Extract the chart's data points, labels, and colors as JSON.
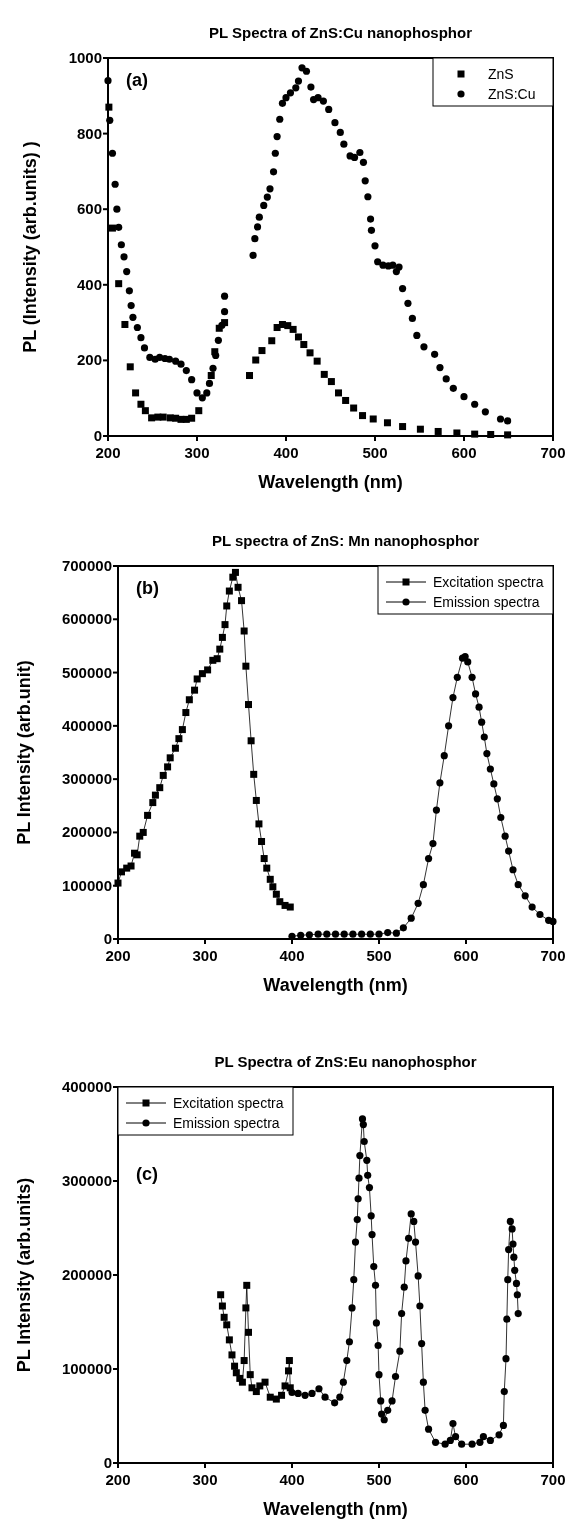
{
  "chart_data": [
    {
      "type": "scatter",
      "title": "PL Spectra of ZnS:Cu nanophosphor",
      "xlabel": "Wavelength (nm)",
      "ylabel": "PL (Intensity (arb.units) )",
      "annotations": [
        "(a)"
      ],
      "xlim": [
        200,
        700
      ],
      "ylim": [
        0,
        1000
      ],
      "xticks": [
        200,
        300,
        400,
        500,
        600,
        700
      ],
      "yticks": [
        0,
        200,
        400,
        600,
        800,
        1000
      ],
      "legend": "top right",
      "grid": false,
      "series": [
        {
          "name": "ZnS",
          "color": "#000000",
          "marker": "square",
          "x": [
            201,
            205,
            212,
            219,
            225,
            231,
            237,
            242,
            249,
            256,
            262,
            270,
            276,
            282,
            288,
            294,
            302,
            310,
            316,
            320,
            325,
            331,
            359,
            366,
            373,
            384,
            390,
            396,
            402,
            408,
            414,
            420,
            427,
            435,
            443,
            451,
            459,
            467,
            476,
            486,
            498,
            514,
            531,
            551,
            571,
            592,
            612,
            630,
            649
          ],
          "values": [
            870,
            550,
            403,
            295,
            183,
            114,
            84,
            67,
            48,
            50,
            50,
            48,
            47,
            44,
            44,
            47,
            67,
            null,
            160,
            223,
            285,
            300,
            160,
            201,
            226,
            252,
            287,
            295,
            292,
            282,
            262,
            242,
            220,
            198,
            163,
            144,
            114,
            94,
            74,
            54,
            45,
            35,
            25,
            18,
            12,
            8,
            5,
            4,
            3
          ]
        },
        {
          "name": "ZnS:Cu",
          "color": "#000000",
          "marker": "circle",
          "x": [
            200,
            202,
            205,
            208,
            210,
            212,
            215,
            218,
            221,
            224,
            226,
            228,
            233,
            237,
            241,
            247,
            253,
            258,
            264,
            269,
            276,
            282,
            288,
            294,
            300,
            306,
            311,
            314,
            318,
            321,
            324,
            328,
            331,
            331,
            363,
            365,
            368,
            370,
            375,
            379,
            382,
            386,
            388,
            390,
            393,
            396,
            400,
            405,
            411,
            414,
            418,
            423,
            428,
            431,
            436,
            442,
            448,
            455,
            461,
            465,
            472,
            477,
            483,
            487,
            489,
            492,
            495,
            496,
            500,
            503,
            509,
            515,
            520,
            524,
            527,
            531,
            537,
            542,
            547,
            555,
            567,
            573,
            580,
            588,
            600,
            612,
            624,
            641,
            649
          ],
          "values": [
            940,
            835,
            748,
            666,
            600,
            552,
            506,
            474,
            435,
            384,
            345,
            314,
            287,
            260,
            233,
            208,
            203,
            208,
            205,
            203,
            198,
            190,
            173,
            149,
            114,
            101,
            114,
            139,
            179,
            213,
            253,
            293,
            329,
            370,
            478,
            522,
            553,
            579,
            610,
            632,
            654,
            699,
            748,
            792,
            838,
            880,
            895,
            908,
            921,
            939,
            974,
            965,
            923,
            890,
            895,
            886,
            864,
            829,
            803,
            772,
            741,
            737,
            750,
            724,
            675,
            633,
            574,
            544,
            503,
            461,
            452,
            450,
            452,
            435,
            447,
            390,
            351,
            311,
            266,
            236,
            216,
            181,
            151,
            126,
            104,
            84,
            64,
            45,
            40
          ]
        }
      ]
    },
    {
      "type": "line",
      "title": "PL spectra of ZnS: Mn nanophosphor",
      "xlabel": "Wavelength (nm)",
      "ylabel": "PL Intensity (arb.unit)",
      "annotations": [
        "(b)"
      ],
      "xlim": [
        200,
        700
      ],
      "ylim": [
        0,
        700000
      ],
      "xticks": [
        200,
        300,
        400,
        500,
        600,
        700
      ],
      "yticks": [
        0,
        100000,
        200000,
        300000,
        400000,
        500000,
        600000,
        700000
      ],
      "legend": "top right",
      "grid": false,
      "line_style": "solid",
      "series": [
        {
          "name": "Excitation spectra",
          "color": "#000000",
          "marker": "square",
          "x": [
            200,
            204,
            210,
            215,
            219,
            222,
            225,
            229,
            234,
            240,
            243,
            248,
            252,
            257,
            260,
            266,
            270,
            274,
            278,
            282,
            288,
            291,
            297,
            303,
            309,
            314,
            317,
            320,
            323,
            325,
            328,
            332,
            335,
            338,
            342,
            345,
            347,
            350,
            353,
            356,
            359,
            362,
            365,
            368,
            371,
            375,
            378,
            382,
            386,
            392,
            398
          ],
          "values": [
            105000,
            126000,
            133000,
            137000,
            161000,
            158000,
            193000,
            200000,
            232000,
            256000,
            270000,
            284000,
            307000,
            323000,
            340000,
            358000,
            376000,
            393000,
            425000,
            449000,
            467000,
            488000,
            498000,
            505000,
            523000,
            526000,
            544000,
            566000,
            590000,
            625000,
            653000,
            679000,
            688000,
            660000,
            635000,
            578000,
            512000,
            440000,
            372000,
            309000,
            260000,
            216000,
            183000,
            151000,
            133000,
            112000,
            98000,
            84000,
            70000,
            63000,
            60000
          ]
        },
        {
          "name": "Emission spectra",
          "color": "#000000",
          "marker": "circle",
          "x": [
            400,
            410,
            420,
            430,
            440,
            450,
            460,
            470,
            480,
            490,
            500,
            510,
            520,
            528,
            537,
            545,
            551,
            557,
            562,
            566,
            570,
            575,
            580,
            585,
            590,
            596,
            599,
            602,
            607,
            611,
            615,
            618,
            621,
            624,
            628,
            632,
            636,
            640,
            645,
            649,
            654,
            660,
            668,
            676,
            685,
            695,
            700
          ],
          "values": [
            5000,
            7000,
            8000,
            9000,
            9000,
            9000,
            9000,
            9000,
            9000,
            9000,
            9000,
            12000,
            11000,
            21000,
            39000,
            67000,
            102000,
            151000,
            179000,
            242000,
            293000,
            344000,
            400000,
            453000,
            491000,
            527000,
            530000,
            520000,
            491000,
            460000,
            435000,
            407000,
            379000,
            348000,
            319000,
            291000,
            263000,
            228000,
            193000,
            165000,
            130000,
            102000,
            81000,
            60000,
            46000,
            35000,
            33000
          ]
        }
      ]
    },
    {
      "type": "line",
      "title": "PL Spectra of ZnS:Eu nanophosphor",
      "xlabel": "Wavelength (nm)",
      "ylabel": "PL Intensity (arb.units)",
      "annotations": [
        "(c)"
      ],
      "xlim": [
        200,
        700
      ],
      "ylim": [
        0,
        400000
      ],
      "xticks": [
        200,
        300,
        400,
        500,
        600,
        700
      ],
      "yticks": [
        0,
        100000,
        200000,
        300000,
        400000
      ],
      "legend": "top left",
      "grid": false,
      "line_style": "solid",
      "series": [
        {
          "name": "Excitation spectra",
          "color": "#000000",
          "marker": "square",
          "x": [
            318,
            320,
            322,
            325,
            328,
            331,
            334,
            336,
            340,
            343,
            345,
            347,
            348,
            350,
            352,
            354,
            359,
            363,
            369,
            375,
            382,
            388,
            392,
            396,
            397,
            398
          ],
          "values": [
            179000,
            167000,
            155000,
            147000,
            131000,
            115000,
            103000,
            96000,
            90000,
            86000,
            109000,
            165000,
            189000,
            139000,
            94000,
            80000,
            76000,
            82000,
            86000,
            70000,
            68000,
            72000,
            82000,
            98000,
            109000,
            80000
          ]
        },
        {
          "name": "Emission spectra",
          "color": "#000000",
          "marker": "circle",
          "x": [
            400,
            407,
            415,
            423,
            431,
            438,
            449,
            455,
            459,
            463,
            466,
            469,
            471,
            473,
            475,
            476,
            477,
            478,
            481,
            482,
            483,
            486,
            487,
            489,
            491,
            492,
            494,
            496,
            497,
            499,
            500,
            502,
            503,
            506,
            510,
            515,
            519,
            524,
            526,
            529,
            531,
            534,
            537,
            540,
            542,
            545,
            547,
            549,
            551,
            553,
            557,
            565,
            576,
            582,
            585,
            588,
            595,
            607,
            616,
            620,
            628,
            638,
            643,
            644,
            646,
            647,
            648,
            649,
            651,
            653,
            654,
            655,
            656,
            658,
            659,
            660
          ],
          "values": [
            75000,
            74000,
            72000,
            74000,
            79000,
            70000,
            64000,
            70000,
            86000,
            109000,
            129000,
            165000,
            195000,
            235000,
            259000,
            281000,
            303000,
            327000,
            366000,
            360000,
            342000,
            322000,
            306000,
            293000,
            263000,
            243000,
            209000,
            189000,
            149000,
            125000,
            94000,
            66000,
            52000,
            46000,
            56000,
            66000,
            92000,
            119000,
            159000,
            187000,
            215000,
            239000,
            265000,
            257000,
            235000,
            199000,
            167000,
            127000,
            86000,
            56000,
            36000,
            22000,
            20000,
            24000,
            42000,
            28000,
            20000,
            20000,
            22000,
            28000,
            24000,
            30000,
            40000,
            76000,
            111000,
            153000,
            195000,
            227000,
            257000,
            249000,
            233000,
            219000,
            205000,
            191000,
            179000,
            159000
          ]
        }
      ]
    }
  ]
}
